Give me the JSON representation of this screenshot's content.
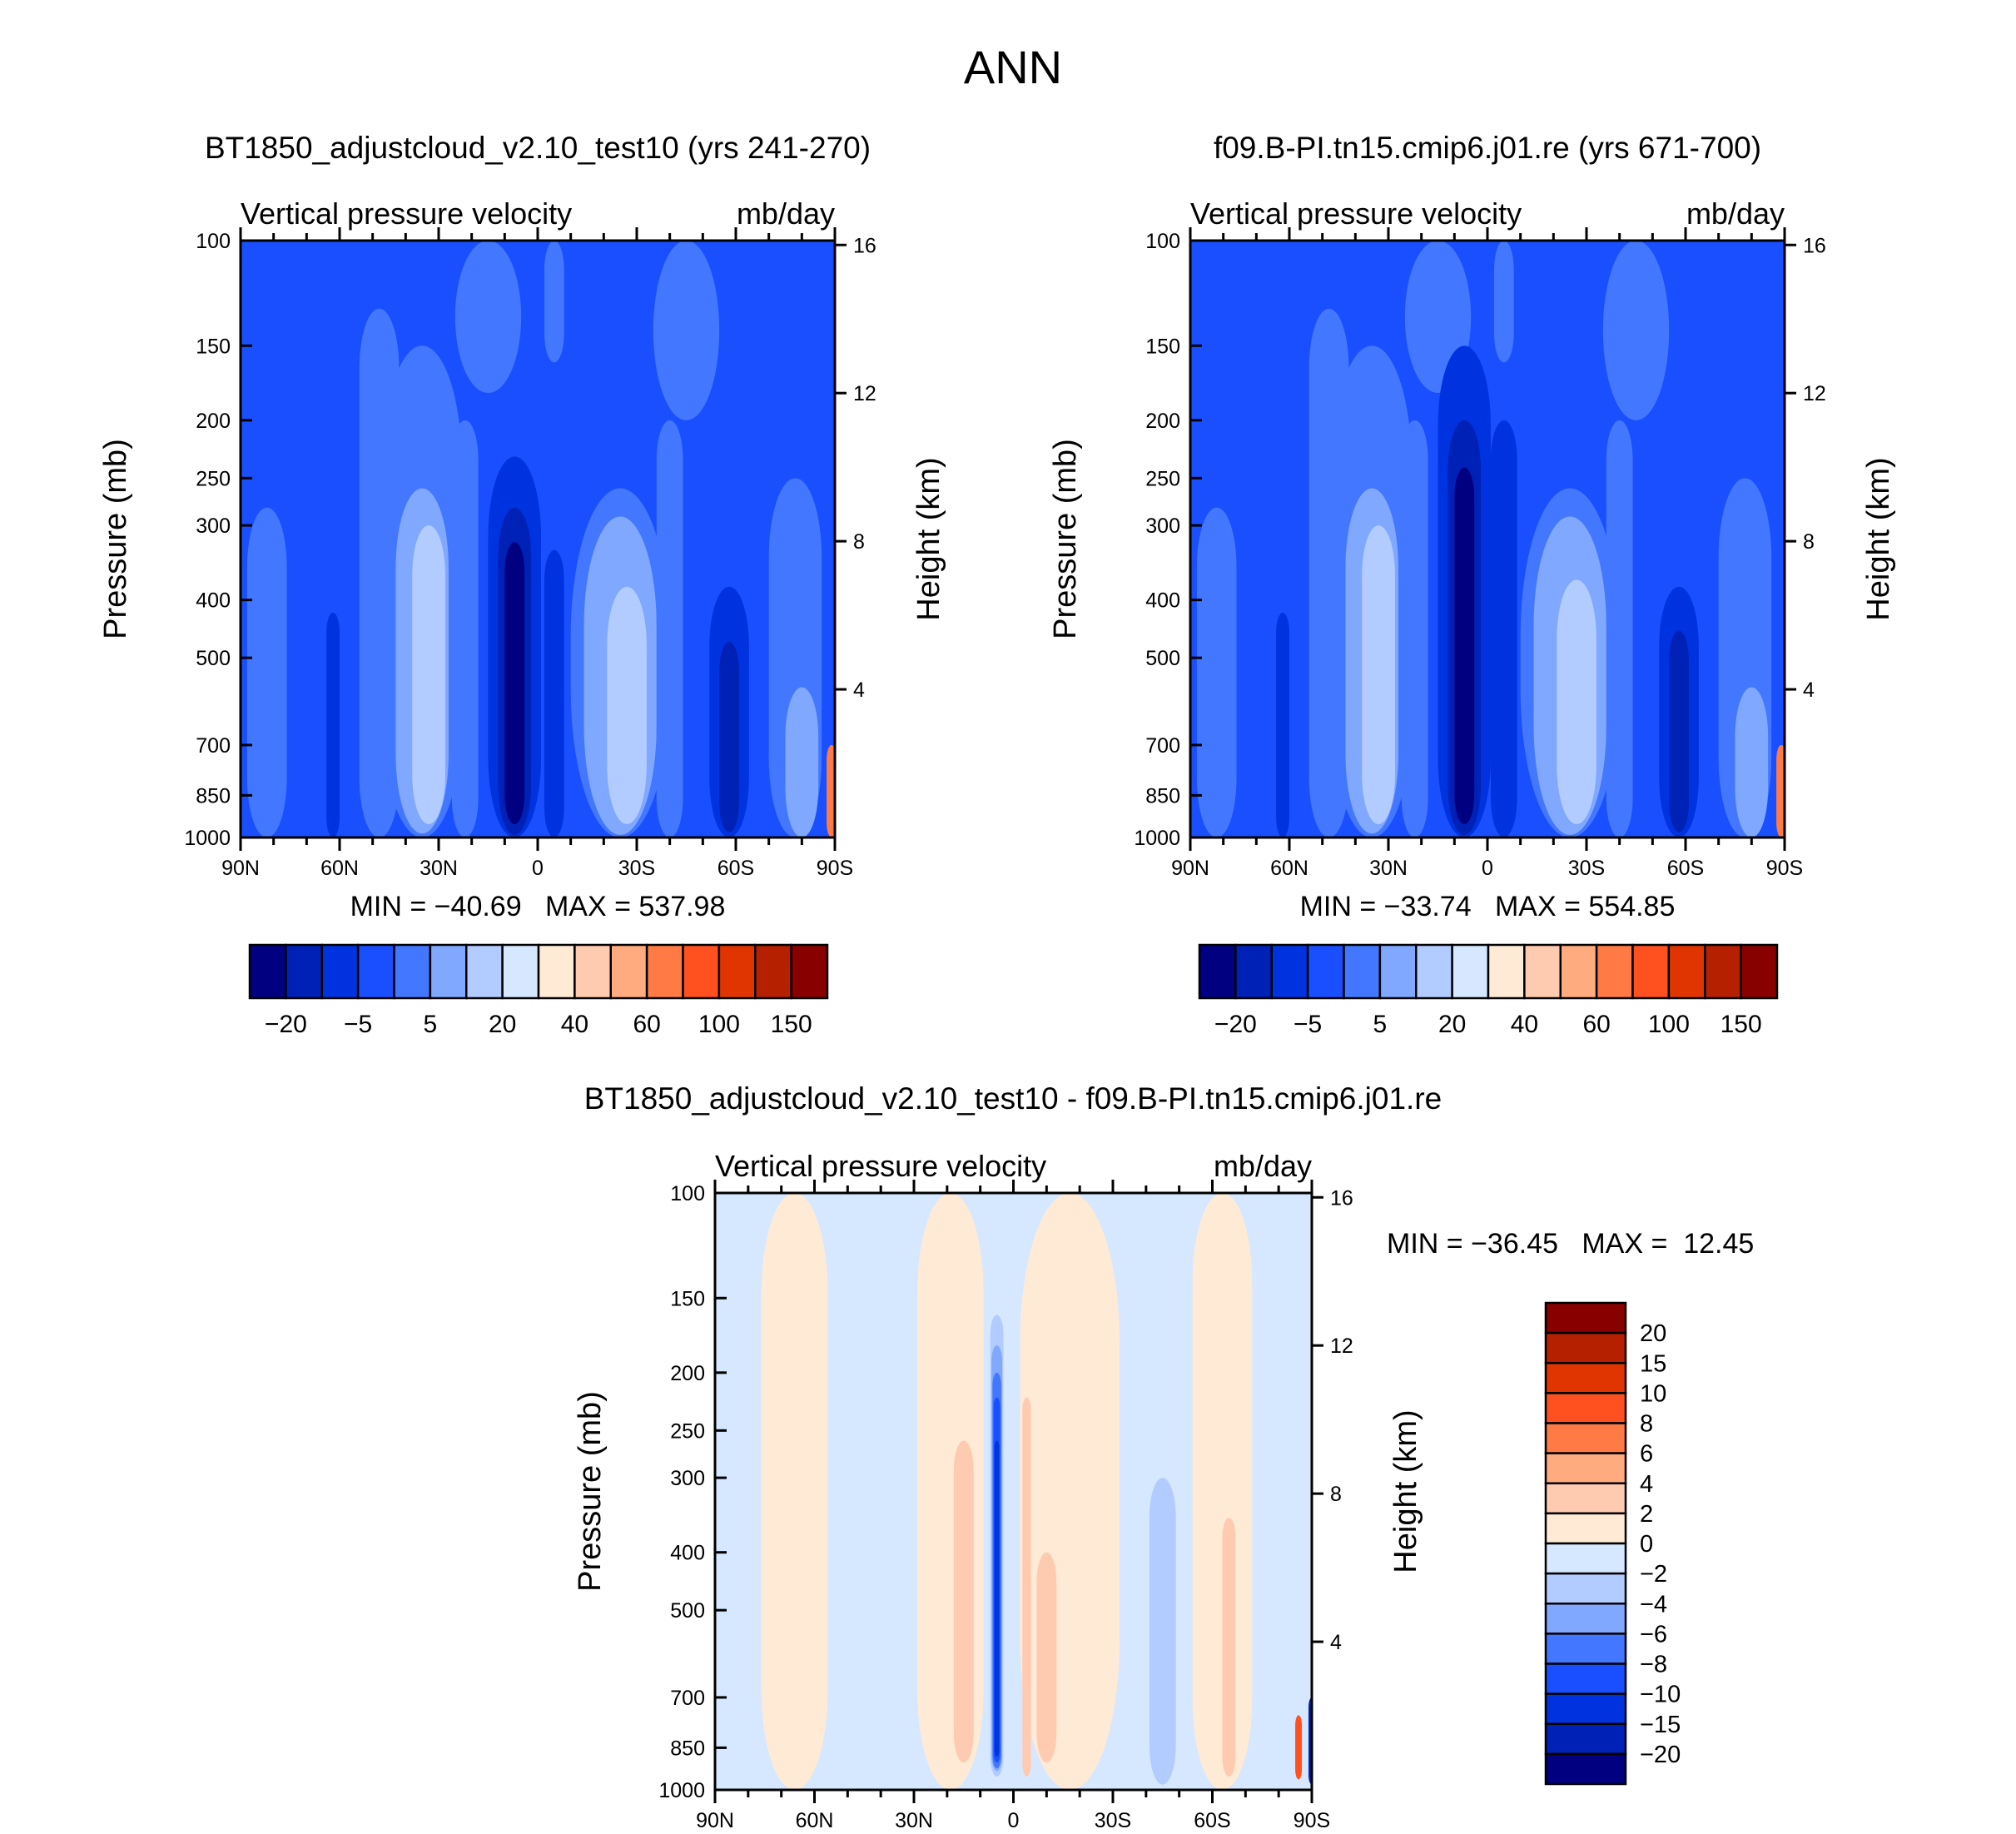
{
  "chart_data": {
    "type": "heatmap",
    "title": "ANN",
    "colors": [
      "#000080",
      "#0021b5",
      "#0033e0",
      "#1a4fff",
      "#4477ff",
      "#80a8ff",
      "#b3ccff",
      "#d5e8ff",
      "#ffead6",
      "#ffcbb0",
      "#ffab80",
      "#ff7a45",
      "#ff5020",
      "#e03500",
      "#b52000",
      "#880000"
    ],
    "panels": [
      {
        "title": "BT1850_adjustcloud_v2.10_test10 (yrs 241-270)",
        "subtitle_left": "Vertical pressure velocity",
        "subtitle_right": "mb/day",
        "ylabel": "Pressure (mb)",
        "ylabel_right": "Height (km)",
        "yticks": [
          "100",
          "150",
          "200",
          "250",
          "300",
          "400",
          "500",
          "700",
          "850",
          "1000"
        ],
        "yticks_right": [
          "16",
          "12",
          "8",
          "4"
        ],
        "xticks": [
          "90N",
          "60N",
          "30N",
          "0",
          "30S",
          "60S",
          "90S"
        ],
        "xlim": [
          90,
          -90
        ],
        "ylim": [
          100,
          1000
        ],
        "stats": "MIN = −40.69   MAX = 537.98",
        "colorbar_labels": [
          "−20",
          "−5",
          "5",
          "20",
          "40",
          "60",
          "100",
          "150"
        ],
        "background_level": 3,
        "features": [
          [
            15,
            10,
            100,
            180,
            4
          ],
          [
            -45,
            10,
            100,
            200,
            4
          ],
          [
            -5,
            3,
            100,
            160,
            4
          ],
          [
            82,
            6,
            280,
            1000,
            4
          ],
          [
            62,
            2,
            420,
            1000,
            2
          ],
          [
            48,
            6,
            130,
            1000,
            4
          ],
          [
            35,
            12,
            150,
            1000,
            4
          ],
          [
            35,
            8,
            260,
            985,
            5
          ],
          [
            33,
            5,
            300,
            950,
            6
          ],
          [
            22,
            4,
            200,
            1000,
            4
          ],
          [
            7,
            8,
            230,
            1000,
            2
          ],
          [
            7,
            5,
            280,
            990,
            1
          ],
          [
            7,
            3,
            320,
            950,
            0
          ],
          [
            -5,
            3,
            330,
            1000,
            2
          ],
          [
            -25,
            15,
            260,
            1000,
            4
          ],
          [
            -25,
            11,
            290,
            990,
            5
          ],
          [
            -27,
            6,
            380,
            950,
            6
          ],
          [
            -40,
            4,
            200,
            1000,
            4
          ],
          [
            -58,
            6,
            380,
            1000,
            2
          ],
          [
            -58,
            3,
            470,
            980,
            1
          ],
          [
            -78,
            8,
            250,
            1000,
            4
          ],
          [
            -80,
            5,
            560,
            1000,
            5
          ],
          [
            -89,
            1.5,
            700,
            1000,
            11
          ]
        ]
      },
      {
        "title": "f09.B-PI.tn15.cmip6.j01.re (yrs 671-700)",
        "subtitle_left": "Vertical pressure velocity",
        "subtitle_right": "mb/day",
        "ylabel": "Pressure (mb)",
        "ylabel_right": "Height (km)",
        "yticks": [
          "100",
          "150",
          "200",
          "250",
          "300",
          "400",
          "500",
          "700",
          "850",
          "1000"
        ],
        "yticks_right": [
          "16",
          "12",
          "8",
          "4"
        ],
        "xticks": [
          "90N",
          "60N",
          "30N",
          "0",
          "30S",
          "60S",
          "90S"
        ],
        "xlim": [
          90,
          -90
        ],
        "ylim": [
          100,
          1000
        ],
        "stats": "MIN = −33.74   MAX = 554.85",
        "colorbar_labels": [
          "−20",
          "−5",
          "5",
          "20",
          "40",
          "60",
          "100",
          "150"
        ],
        "background_level": 3,
        "features": [
          [
            15,
            10,
            100,
            180,
            4
          ],
          [
            -45,
            10,
            100,
            200,
            4
          ],
          [
            -5,
            3,
            100,
            160,
            4
          ],
          [
            82,
            6,
            280,
            1000,
            4
          ],
          [
            62,
            2,
            420,
            1000,
            2
          ],
          [
            48,
            6,
            130,
            1000,
            4
          ],
          [
            35,
            12,
            150,
            1000,
            4
          ],
          [
            35,
            8,
            260,
            985,
            5
          ],
          [
            33,
            5,
            300,
            950,
            6
          ],
          [
            22,
            4,
            200,
            1000,
            4
          ],
          [
            7,
            8,
            150,
            1000,
            2
          ],
          [
            7,
            5,
            200,
            990,
            1
          ],
          [
            7,
            3,
            240,
            950,
            0
          ],
          [
            -5,
            4,
            200,
            1000,
            2
          ],
          [
            -25,
            15,
            260,
            1000,
            4
          ],
          [
            -25,
            11,
            290,
            990,
            5
          ],
          [
            -27,
            6,
            370,
            950,
            6
          ],
          [
            -40,
            4,
            200,
            1000,
            4
          ],
          [
            -58,
            6,
            380,
            1000,
            2
          ],
          [
            -58,
            3,
            450,
            980,
            1
          ],
          [
            -78,
            8,
            250,
            1000,
            4
          ],
          [
            -80,
            5,
            560,
            1000,
            5
          ],
          [
            -89,
            1.5,
            700,
            1000,
            11
          ]
        ]
      },
      {
        "title": "BT1850_adjustcloud_v2.10_test10 - f09.B-PI.tn15.cmip6.j01.re",
        "subtitle_left": "Vertical pressure velocity",
        "subtitle_right": "mb/day",
        "ylabel": "Pressure (mb)",
        "ylabel_right": "Height (km)",
        "yticks": [
          "100",
          "150",
          "200",
          "250",
          "300",
          "400",
          "500",
          "700",
          "850",
          "1000"
        ],
        "yticks_right": [
          "16",
          "12",
          "8",
          "4"
        ],
        "xticks": [
          "90N",
          "60N",
          "30N",
          "0",
          "30S",
          "60S",
          "90S"
        ],
        "xlim": [
          90,
          -90
        ],
        "ylim": [
          100,
          1000
        ],
        "stats": "MIN = −36.45   MAX =  12.45",
        "colorbar_labels": [
          "20",
          "15",
          "10",
          "8",
          "6",
          "4",
          "2",
          "0",
          "−2",
          "−4",
          "−6",
          "−8",
          "−10",
          "−15",
          "−20"
        ],
        "background_level": 7,
        "features": [
          [
            66,
            10,
            100,
            1000,
            8
          ],
          [
            19,
            10,
            100,
            1000,
            8
          ],
          [
            15,
            3,
            260,
            900,
            9
          ],
          [
            -17,
            15,
            100,
            1000,
            8
          ],
          [
            -4,
            1.3,
            220,
            950,
            9
          ],
          [
            -10,
            3,
            400,
            900,
            9
          ],
          [
            -45,
            4,
            300,
            980,
            6
          ],
          [
            -63,
            9,
            100,
            1000,
            8
          ],
          [
            -65,
            2,
            350,
            950,
            9
          ],
          [
            5,
            2,
            160,
            950,
            6
          ],
          [
            5,
            1.6,
            180,
            930,
            5
          ],
          [
            5,
            1.3,
            200,
            920,
            4
          ],
          [
            5,
            1,
            220,
            900,
            3
          ],
          [
            5,
            0.7,
            260,
            880,
            2
          ],
          [
            -86,
            1,
            750,
            960,
            12
          ],
          [
            -90,
            1,
            700,
            980,
            1
          ]
        ]
      }
    ]
  }
}
